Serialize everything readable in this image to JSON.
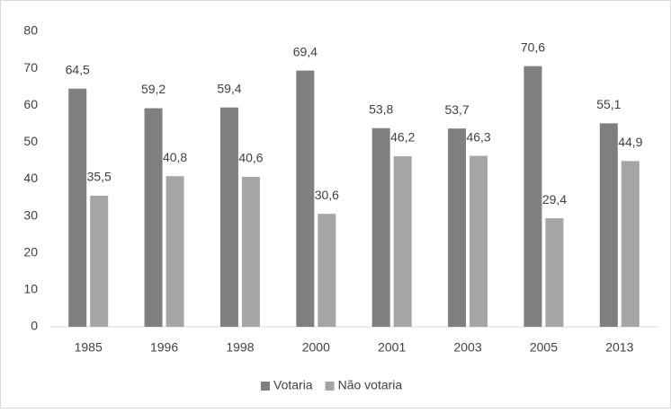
{
  "chart_data": {
    "type": "bar",
    "categories": [
      "1985",
      "1996",
      "1998",
      "2000",
      "2001",
      "2003",
      "2005",
      "2013"
    ],
    "series": [
      {
        "name": "Votaria",
        "color": "#7f7f7f",
        "values": [
          64.5,
          59.2,
          59.4,
          69.4,
          53.8,
          53.7,
          70.6,
          55.1
        ],
        "value_labels": [
          "64,5",
          "59,2",
          "59,4",
          "69,4",
          "53,8",
          "53,7",
          "70,6",
          "55,1"
        ]
      },
      {
        "name": "Não votaria",
        "color": "#a5a5a5",
        "values": [
          35.5,
          40.8,
          40.6,
          30.6,
          46.2,
          46.3,
          29.4,
          44.9
        ],
        "value_labels": [
          "35,5",
          "40,8",
          "40,6",
          "30,6",
          "46,2",
          "46,3",
          "29,4",
          "44,9"
        ]
      }
    ],
    "ylim": [
      0,
      80
    ],
    "yticks": [
      0,
      10,
      20,
      30,
      40,
      50,
      60,
      70,
      80
    ],
    "grid": false,
    "legend": "bottom"
  }
}
